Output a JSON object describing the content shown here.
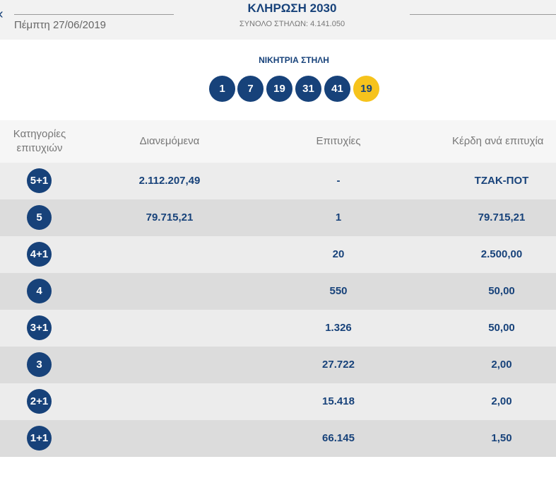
{
  "header": {
    "back_icon": "chevron-left-icon",
    "back_glyph": "‹",
    "date": "Πέμπτη 27/06/2019",
    "title": "ΚΛΗΡΩΣΗ 2030",
    "subtitle": "ΣΥΝΟΛΟ ΣΤΗΛΩΝ: 4.141.050"
  },
  "winning": {
    "label": "ΝΙΚΗΤΡΙΑ ΣΤΗΛΗ",
    "numbers": [
      "1",
      "7",
      "19",
      "31",
      "41"
    ],
    "joker": "19"
  },
  "table": {
    "headers": {
      "category_line1": "Κατηγορίες",
      "category_line2": "επιτυχιών",
      "distributed": "Διανεμόμενα",
      "successes": "Επιτυχίες",
      "prize": "Κέρδη ανά επιτυχία"
    },
    "rows": [
      {
        "category": "5+1",
        "distributed": "2.112.207,49",
        "successes": "-",
        "prize": "ΤΖΑΚ-ΠΟΤ"
      },
      {
        "category": "5",
        "distributed": "79.715,21",
        "successes": "1",
        "prize": "79.715,21"
      },
      {
        "category": "4+1",
        "distributed": "",
        "successes": "20",
        "prize": "2.500,00"
      },
      {
        "category": "4",
        "distributed": "",
        "successes": "550",
        "prize": "50,00"
      },
      {
        "category": "3+1",
        "distributed": "",
        "successes": "1.326",
        "prize": "50,00"
      },
      {
        "category": "3",
        "distributed": "",
        "successes": "27.722",
        "prize": "2,00"
      },
      {
        "category": "2+1",
        "distributed": "",
        "successes": "15.418",
        "prize": "2,00"
      },
      {
        "category": "1+1",
        "distributed": "",
        "successes": "66.145",
        "prize": "1,50"
      }
    ]
  },
  "colors": {
    "primary_blue": "#17427a",
    "joker_yellow": "#f6c31c",
    "row_light": "#ececec",
    "row_dark": "#dcdcdc"
  }
}
